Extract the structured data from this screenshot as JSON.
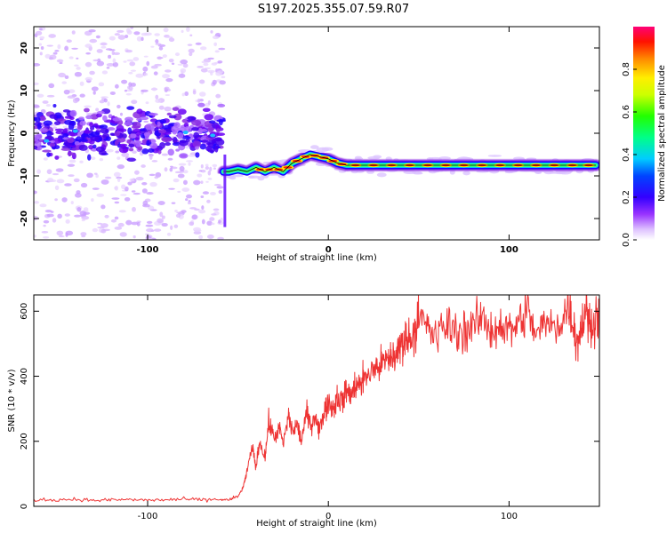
{
  "title": "S197.2025.355.07.59.R07",
  "colors": {
    "snr_line": "#ee3333",
    "spectral_ridge": "#000000"
  },
  "chart_data": [
    {
      "type": "heatmap",
      "name": "spectrogram",
      "xlabel": "Height of straight line (km)",
      "ylabel": "Frequency (Hz)",
      "xlim": [
        -163,
        150
      ],
      "ylim": [
        -25,
        25
      ],
      "xticks": [
        -100,
        0,
        100
      ],
      "yticks": [
        -20,
        -10,
        0,
        10,
        20
      ],
      "colorbar": {
        "label": "Normalized spectral amplitude",
        "range": [
          0,
          1
        ],
        "ticks": [
          0.0,
          0.2,
          0.4,
          0.6,
          0.8
        ],
        "tick_labels": [
          "0.0",
          "0.2",
          "0.4",
          "0.6",
          "0.8"
        ],
        "colormap": [
          "#ffffff",
          "#d8b8f8",
          "#8a2be2",
          "#4400ee",
          "#0000ff",
          "#00c8ff",
          "#00ff66",
          "#aaff00",
          "#ffff00",
          "#ff8800",
          "#ff0000",
          "#ff0066"
        ]
      },
      "ridge": {
        "x": [
          -58,
          -55,
          -50,
          -45,
          -40,
          -35,
          -30,
          -25,
          -20,
          -15,
          -10,
          -5,
          0,
          5,
          10,
          20,
          30,
          40,
          50,
          60,
          70,
          80,
          90,
          100,
          110,
          120,
          130,
          140,
          148
        ],
        "y": [
          -9,
          -9,
          -8.5,
          -9,
          -8,
          -9,
          -8,
          -9,
          -7,
          -6,
          -5,
          -5.5,
          -6,
          -7,
          -7.5,
          -7.5,
          -7.5,
          -7.5,
          -7.5,
          -7.5,
          -7.5,
          -7.5,
          -7.5,
          -7.5,
          -7.5,
          -7.5,
          -7.5,
          -7.5,
          -7.5
        ]
      },
      "noise_region": {
        "x_range": [
          -163,
          -58
        ],
        "center_frequency": 0,
        "spread": 4
      }
    },
    {
      "type": "line",
      "name": "snr",
      "xlabel": "Height of straight line (km)",
      "ylabel": "SNR (10 * v/v)",
      "xlim": [
        -163,
        150
      ],
      "ylim": [
        0,
        650
      ],
      "xticks": [
        -100,
        0,
        100
      ],
      "yticks": [
        0,
        200,
        400,
        600
      ],
      "series": [
        {
          "name": "SNR",
          "x": [
            -163,
            -150,
            -140,
            -130,
            -120,
            -110,
            -100,
            -90,
            -80,
            -70,
            -60,
            -55,
            -50,
            -47,
            -45,
            -42,
            -40,
            -38,
            -35,
            -33,
            -30,
            -27,
            -25,
            -22,
            -20,
            -17,
            -15,
            -12,
            -10,
            -7,
            -5,
            -2,
            0,
            3,
            5,
            8,
            10,
            13,
            15,
            18,
            20,
            25,
            28,
            30,
            33,
            35,
            38,
            40,
            42,
            45,
            48,
            50,
            55,
            60,
            65,
            70,
            75,
            80,
            85,
            90,
            95,
            100,
            105,
            110,
            115,
            120,
            125,
            130,
            133,
            135,
            138,
            140,
            143,
            145,
            148,
            150
          ],
          "y": [
            20,
            20,
            22,
            18,
            20,
            21,
            19,
            20,
            22,
            20,
            21,
            20,
            30,
            60,
            110,
            180,
            120,
            200,
            150,
            260,
            210,
            240,
            190,
            280,
            230,
            250,
            200,
            290,
            250,
            280,
            230,
            300,
            320,
            300,
            340,
            320,
            360,
            340,
            380,
            370,
            400,
            420,
            430,
            440,
            450,
            460,
            470,
            500,
            510,
            520,
            540,
            580,
            550,
            520,
            560,
            540,
            540,
            550,
            580,
            540,
            560,
            540,
            560,
            600,
            530,
            560,
            550,
            580,
            620,
            570,
            500,
            560,
            600,
            550,
            590,
            580
          ]
        }
      ]
    }
  ]
}
